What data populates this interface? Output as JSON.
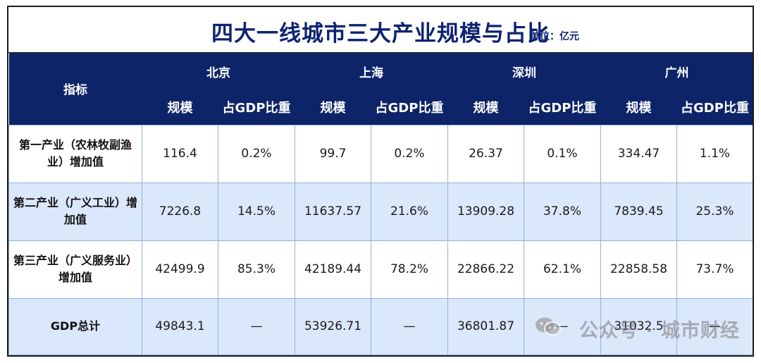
{
  "title": "四大一线城市三大产业规模与占比",
  "unit": "单位：亿元",
  "header": {
    "indicator": "指标",
    "cities": [
      "北京",
      "上海",
      "深圳",
      "广州"
    ],
    "sub": [
      "规模",
      "占GDP比重"
    ]
  },
  "rows": [
    {
      "label": "第一产业（农林牧副渔业）增加值",
      "values": [
        "116.4",
        "0.2%",
        "99.7",
        "0.2%",
        "26.37",
        "0.1%",
        "334.47",
        "1.1%"
      ]
    },
    {
      "label": "第二产业（广义工业）增加值",
      "values": [
        "7226.8",
        "14.5%",
        "11637.57",
        "21.6%",
        "13909.28",
        "37.8%",
        "7839.45",
        "25.3%"
      ]
    },
    {
      "label": "第三产业（广义服务业）增加值",
      "values": [
        "42499.9",
        "85.3%",
        "42189.44",
        "78.2%",
        "22866.22",
        "62.1%",
        "22858.58",
        "73.7%"
      ]
    },
    {
      "label": "GDP总计",
      "values": [
        "49843.1",
        "—",
        "53926.71",
        "—",
        "36801.87",
        "—",
        "31032.5",
        "—"
      ]
    }
  ],
  "watermark": "公众号 · 城市财经",
  "watermark_icon": "wechat-icon"
}
